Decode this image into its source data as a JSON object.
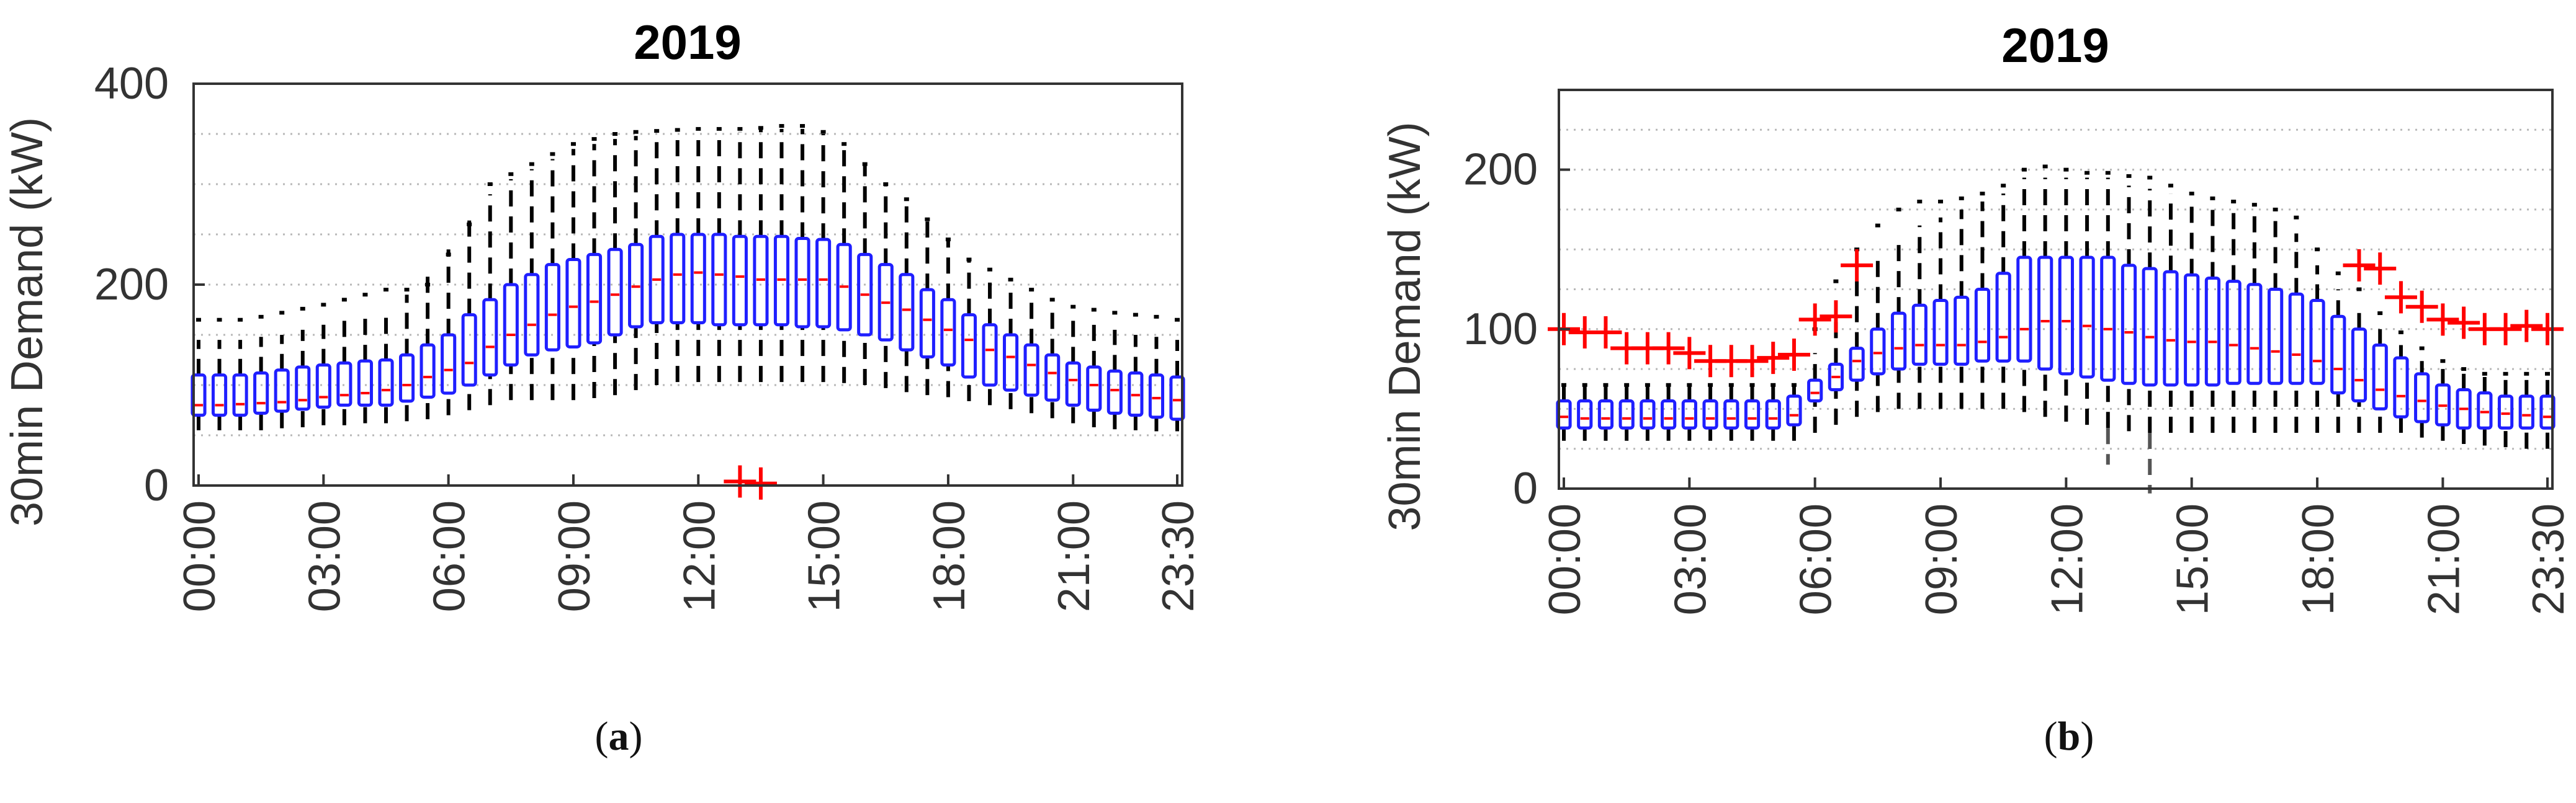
{
  "figure": {
    "captions": [
      {
        "open": "(",
        "letter": "a",
        "close": ")"
      },
      {
        "open": "(",
        "letter": "b",
        "close": ")"
      }
    ]
  },
  "colors": {
    "box": "#1f1fff",
    "median": "#ff0000",
    "whisker": "#000000",
    "outlier": "#ff0000",
    "grid": "#b8b8b8",
    "axis": "#333333",
    "text": "#333333",
    "title": "#000000"
  },
  "chart_data": [
    {
      "type": "box",
      "title": "2019",
      "ylabel": "30min Demand (kW)",
      "xlabel": "",
      "ylim": [
        0,
        400
      ],
      "yticks": [
        0,
        200,
        400
      ],
      "ytick_labels": [
        "0",
        "200",
        "400"
      ],
      "minor_grid_step": 50,
      "grid": true,
      "categories": [
        "00:00",
        "00:30",
        "01:00",
        "01:30",
        "02:00",
        "02:30",
        "03:00",
        "03:30",
        "04:00",
        "04:30",
        "05:00",
        "05:30",
        "06:00",
        "06:30",
        "07:00",
        "07:30",
        "08:00",
        "08:30",
        "09:00",
        "09:30",
        "10:00",
        "10:30",
        "11:00",
        "11:30",
        "12:00",
        "12:30",
        "13:00",
        "13:30",
        "14:00",
        "14:30",
        "15:00",
        "15:30",
        "16:00",
        "16:30",
        "17:00",
        "17:30",
        "18:00",
        "18:30",
        "19:00",
        "19:30",
        "20:00",
        "20:30",
        "21:00",
        "21:30",
        "22:00",
        "22:30",
        "23:00",
        "23:30"
      ],
      "xtick_indices": [
        0,
        6,
        12,
        18,
        24,
        30,
        36,
        42,
        47
      ],
      "xtick_labels": [
        "00:00",
        "03:00",
        "06:00",
        "09:00",
        "12:00",
        "15:00",
        "18:00",
        "21:00",
        "23:30"
      ],
      "series": {
        "whisker_low": [
          55,
          55,
          55,
          55,
          57,
          58,
          60,
          60,
          62,
          62,
          64,
          66,
          70,
          75,
          80,
          85,
          85,
          85,
          85,
          87,
          90,
          95,
          100,
          103,
          103,
          103,
          103,
          103,
          103,
          103,
          103,
          102,
          100,
          97,
          93,
          90,
          88,
          84,
          80,
          76,
          72,
          67,
          62,
          58,
          56,
          55,
          54,
          54
        ],
        "q1": [
          70,
          70,
          70,
          72,
          74,
          76,
          78,
          80,
          80,
          80,
          84,
          88,
          92,
          100,
          110,
          120,
          130,
          135,
          138,
          142,
          150,
          158,
          162,
          162,
          162,
          160,
          160,
          160,
          160,
          158,
          158,
          155,
          150,
          145,
          135,
          128,
          120,
          108,
          100,
          95,
          90,
          85,
          80,
          75,
          72,
          70,
          68,
          66
        ],
        "median": [
          80,
          80,
          81,
          82,
          83,
          85,
          88,
          90,
          92,
          95,
          100,
          108,
          115,
          122,
          138,
          150,
          160,
          170,
          178,
          183,
          190,
          198,
          205,
          210,
          212,
          210,
          208,
          205,
          205,
          205,
          205,
          198,
          190,
          182,
          175,
          165,
          155,
          145,
          135,
          128,
          120,
          112,
          105,
          100,
          95,
          90,
          87,
          85
        ],
        "q3": [
          110,
          110,
          110,
          112,
          115,
          118,
          120,
          122,
          124,
          125,
          130,
          140,
          150,
          170,
          185,
          200,
          210,
          220,
          225,
          230,
          235,
          240,
          248,
          250,
          250,
          250,
          248,
          248,
          248,
          246,
          245,
          240,
          230,
          220,
          210,
          195,
          185,
          170,
          160,
          150,
          140,
          130,
          122,
          118,
          114,
          112,
          110,
          108
        ],
        "whisker_high": [
          145,
          145,
          145,
          148,
          150,
          155,
          160,
          165,
          170,
          175,
          190,
          215,
          235,
          265,
          290,
          305,
          315,
          325,
          335,
          340,
          345,
          348,
          350,
          350,
          350,
          352,
          352,
          355,
          355,
          355,
          350,
          340,
          320,
          300,
          285,
          265,
          245,
          225,
          210,
          200,
          190,
          175,
          165,
          160,
          155,
          150,
          148,
          145
        ],
        "dot_max": [
          165,
          165,
          165,
          168,
          172,
          176,
          180,
          185,
          190,
          195,
          195,
          200,
          230,
          260,
          300,
          310,
          320,
          330,
          340,
          345,
          350,
          352,
          353,
          354,
          355,
          355,
          355,
          356,
          358,
          358,
          352,
          340,
          320,
          300,
          285,
          265,
          245,
          225,
          215,
          205,
          195,
          185,
          178,
          175,
          172,
          170,
          168,
          165
        ],
        "outliers": [
          {
            "x": "13:00",
            "y": 4
          },
          {
            "x": "13:30",
            "y": 2
          }
        ]
      }
    },
    {
      "type": "box",
      "title": "2019",
      "ylabel": "30min Demand (kW)",
      "xlabel": "",
      "ylim": [
        0,
        250
      ],
      "yticks": [
        0,
        100,
        200
      ],
      "ytick_labels": [
        "0",
        "100",
        "200"
      ],
      "minor_grid_step": 25,
      "grid": true,
      "categories": [
        "00:00",
        "00:30",
        "01:00",
        "01:30",
        "02:00",
        "02:30",
        "03:00",
        "03:30",
        "04:00",
        "04:30",
        "05:00",
        "05:30",
        "06:00",
        "06:30",
        "07:00",
        "07:30",
        "08:00",
        "08:30",
        "09:00",
        "09:30",
        "10:00",
        "10:30",
        "11:00",
        "11:30",
        "12:00",
        "12:30",
        "13:00",
        "13:30",
        "14:00",
        "14:30",
        "15:00",
        "15:30",
        "16:00",
        "16:30",
        "17:00",
        "17:30",
        "18:00",
        "18:30",
        "19:00",
        "19:30",
        "20:00",
        "20:30",
        "21:00",
        "21:30",
        "22:00",
        "22:30",
        "23:00",
        "23:30"
      ],
      "xtick_indices": [
        0,
        6,
        12,
        18,
        24,
        30,
        36,
        42,
        47
      ],
      "xtick_labels": [
        "00:00",
        "03:00",
        "06:00",
        "09:00",
        "12:00",
        "15:00",
        "18:00",
        "21:00",
        "23:30"
      ],
      "series": {
        "whisker_low": [
          30,
          30,
          30,
          30,
          30,
          30,
          30,
          30,
          30,
          30,
          30,
          30,
          35,
          40,
          45,
          48,
          50,
          50,
          50,
          50,
          50,
          50,
          48,
          45,
          42,
          40,
          38,
          36,
          35,
          35,
          35,
          35,
          35,
          35,
          35,
          35,
          35,
          35,
          35,
          35,
          35,
          32,
          30,
          28,
          27,
          26,
          25,
          25
        ],
        "q1": [
          38,
          38,
          38,
          38,
          38,
          38,
          38,
          38,
          38,
          38,
          38,
          40,
          55,
          62,
          68,
          72,
          75,
          78,
          78,
          78,
          80,
          80,
          80,
          75,
          72,
          70,
          68,
          66,
          65,
          65,
          65,
          65,
          66,
          66,
          66,
          66,
          66,
          60,
          55,
          50,
          45,
          42,
          40,
          38,
          38,
          38,
          38,
          38
        ],
        "median": [
          45,
          44,
          44,
          44,
          44,
          44,
          44,
          44,
          44,
          44,
          44,
          46,
          60,
          70,
          80,
          85,
          88,
          90,
          90,
          90,
          92,
          95,
          100,
          105,
          105,
          102,
          100,
          98,
          95,
          93,
          92,
          92,
          90,
          88,
          86,
          84,
          80,
          75,
          68,
          62,
          58,
          55,
          52,
          50,
          48,
          47,
          46,
          45
        ],
        "q3": [
          55,
          55,
          55,
          55,
          55,
          55,
          55,
          55,
          55,
          55,
          55,
          58,
          68,
          78,
          88,
          100,
          110,
          115,
          118,
          120,
          125,
          135,
          145,
          145,
          145,
          145,
          145,
          140,
          138,
          136,
          134,
          132,
          130,
          128,
          125,
          122,
          118,
          108,
          100,
          90,
          82,
          72,
          65,
          62,
          60,
          58,
          58,
          58
        ],
        "whisker_high": [
          65,
          65,
          65,
          65,
          65,
          65,
          65,
          65,
          65,
          65,
          65,
          65,
          85,
          105,
          130,
          145,
          155,
          165,
          170,
          175,
          180,
          185,
          195,
          195,
          195,
          195,
          195,
          190,
          188,
          185,
          183,
          180,
          178,
          175,
          170,
          160,
          140,
          125,
          115,
          100,
          90,
          80,
          75,
          72,
          70,
          70,
          70,
          70
        ],
        "dot_max": [
          65,
          65,
          65,
          65,
          65,
          65,
          65,
          65,
          65,
          65,
          65,
          65,
          100,
          130,
          150,
          165,
          175,
          180,
          180,
          182,
          185,
          190,
          200,
          202,
          200,
          198,
          198,
          196,
          195,
          190,
          185,
          182,
          180,
          178,
          175,
          170,
          150,
          135,
          125,
          110,
          98,
          88,
          80,
          75,
          72,
          72,
          72,
          72
        ],
        "lower_tail": [
          {
            "x": "13:00",
            "y": 15
          },
          {
            "x": "14:00",
            "y": -3
          }
        ],
        "outliers": [
          {
            "x": "00:00",
            "y": 100
          },
          {
            "x": "00:30",
            "y": 98
          },
          {
            "x": "01:00",
            "y": 98
          },
          {
            "x": "01:30",
            "y": 88
          },
          {
            "x": "02:00",
            "y": 88
          },
          {
            "x": "02:30",
            "y": 88
          },
          {
            "x": "03:00",
            "y": 85
          },
          {
            "x": "03:30",
            "y": 80
          },
          {
            "x": "04:00",
            "y": 80
          },
          {
            "x": "04:30",
            "y": 80
          },
          {
            "x": "05:00",
            "y": 82
          },
          {
            "x": "05:30",
            "y": 84
          },
          {
            "x": "06:00",
            "y": 106
          },
          {
            "x": "06:30",
            "y": 108
          },
          {
            "x": "07:00",
            "y": 140
          },
          {
            "x": "19:00",
            "y": 140
          },
          {
            "x": "19:30",
            "y": 138
          },
          {
            "x": "20:00",
            "y": 120
          },
          {
            "x": "20:30",
            "y": 114
          },
          {
            "x": "21:00",
            "y": 106
          },
          {
            "x": "21:30",
            "y": 104
          },
          {
            "x": "22:00",
            "y": 100
          },
          {
            "x": "22:30",
            "y": 100
          },
          {
            "x": "23:00",
            "y": 102
          },
          {
            "x": "23:30",
            "y": 100
          }
        ]
      }
    }
  ]
}
